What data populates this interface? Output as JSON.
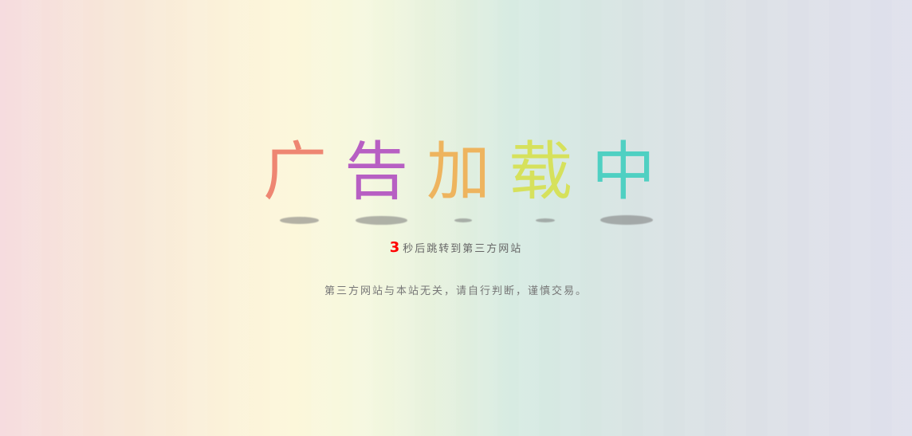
{
  "headline": {
    "chars": [
      "广",
      "告",
      "加",
      "载",
      "中"
    ]
  },
  "countdown": {
    "seconds": "3",
    "text": "秒后跳转到第三方网站"
  },
  "warning": "第三方网站与本站无关，请自行判断，谨慎交易。",
  "colors": {
    "char1": "#ee8672",
    "char2": "#b75fc3",
    "char3": "#eeb45e",
    "char4": "#d6e15c",
    "char5": "#4fd0c2",
    "count": "#ff0000"
  }
}
